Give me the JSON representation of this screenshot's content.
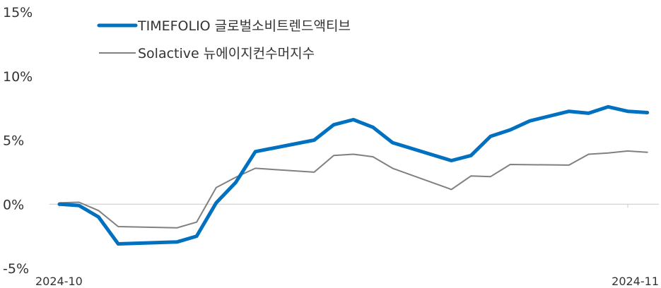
{
  "chart_data": {
    "type": "line",
    "xlabel": "",
    "ylabel": "",
    "ylim": [
      -5,
      15
    ],
    "yticks": [
      "15%",
      "10%",
      "5%",
      "0%",
      "-5%"
    ],
    "ytick_values": [
      15,
      10,
      5,
      0,
      -5
    ],
    "xlim": [
      0,
      29
    ],
    "xtick_labels": [
      "2024-10",
      "2024-11"
    ],
    "xtick_values": [
      0,
      29
    ],
    "grid": false,
    "legend_position": "top-left",
    "series": [
      {
        "name": "TIMEFOLIO 글로벌소비트렌드액티브",
        "color": "#0070C0",
        "x": [
          0,
          1,
          2,
          3,
          6,
          7,
          8,
          9,
          10,
          13,
          14,
          15,
          16,
          17,
          20,
          21,
          22,
          23,
          24,
          26,
          27,
          28,
          29,
          30
        ],
        "values": [
          0.0,
          -0.1,
          -1.0,
          -3.1,
          -2.95,
          -2.5,
          0.1,
          1.7,
          4.1,
          5.0,
          6.2,
          6.6,
          6.0,
          4.8,
          3.4,
          3.8,
          5.3,
          5.8,
          6.5,
          7.25,
          7.1,
          7.6,
          7.25,
          7.15
        ]
      },
      {
        "name": "Solactive 뉴에이지컨수머지수",
        "color": "#808080",
        "x": [
          0,
          1,
          2,
          3,
          6,
          7,
          8,
          9,
          10,
          13,
          14,
          15,
          16,
          17,
          20,
          21,
          22,
          23,
          26,
          27,
          28,
          29,
          30
        ],
        "values": [
          0.1,
          0.15,
          -0.5,
          -1.75,
          -1.85,
          -1.4,
          1.3,
          2.1,
          2.8,
          2.5,
          3.8,
          3.9,
          3.7,
          2.8,
          1.15,
          2.2,
          2.15,
          3.1,
          3.05,
          3.9,
          4.0,
          4.15,
          4.05
        ]
      }
    ]
  }
}
